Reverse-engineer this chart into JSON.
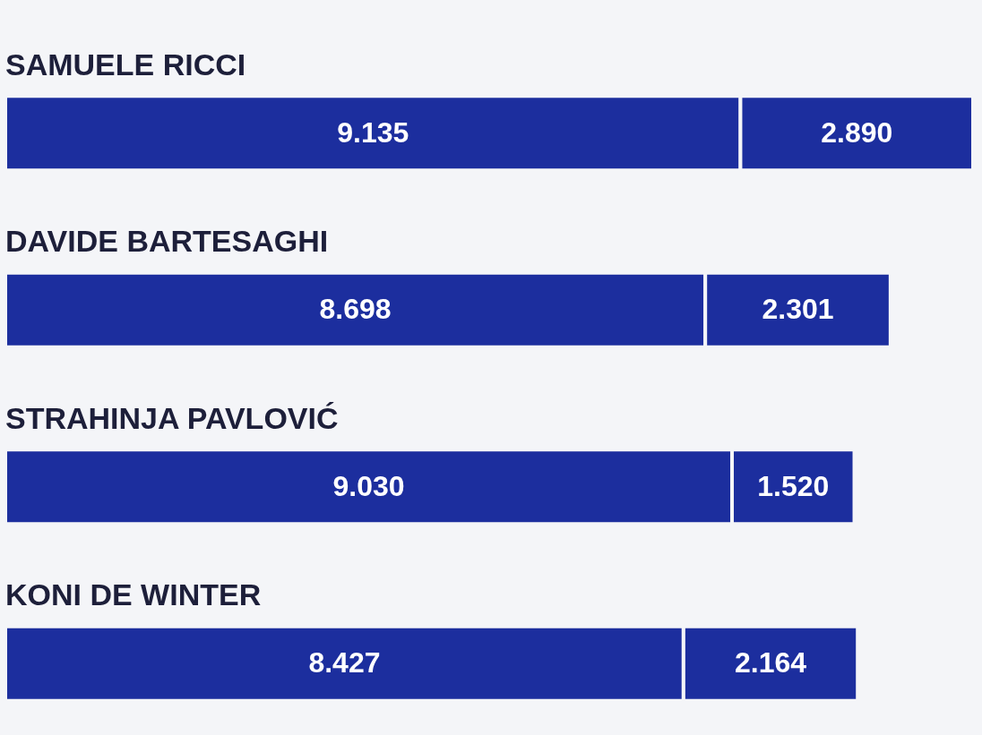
{
  "chart_data": {
    "type": "bar",
    "orientation": "horizontal",
    "stacked": true,
    "categories": [
      "SAMUELE RICCI",
      "DAVIDE BARTESAGHI",
      "STRAHINJA PAVLOVIĆ",
      "KONI DE WINTER"
    ],
    "series": [
      {
        "color": "#1c2e9e",
        "values": [
          9.135,
          8.698,
          9.03,
          8.427
        ],
        "value_labels": [
          "9.135",
          "8.698",
          "9.030",
          "8.427"
        ]
      },
      {
        "color": "#1c2e9e",
        "values": [
          2.89,
          2.301,
          1.52,
          2.164
        ],
        "value_labels": [
          "2.890",
          "2.301",
          "1.520",
          "2.164"
        ]
      }
    ]
  }
}
